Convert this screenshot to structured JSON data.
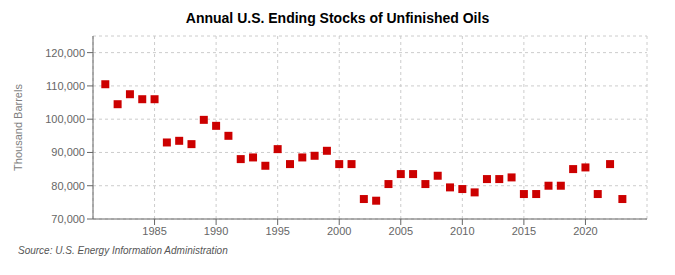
{
  "chart_data": {
    "type": "scatter",
    "title": "Annual U.S. Ending Stocks of Unfinished Oils",
    "ylabel": "Thousand Barrels",
    "annotations": [
      "Source: U.S. Energy Information Administration"
    ],
    "x": [
      1981,
      1982,
      1983,
      1984,
      1985,
      1986,
      1987,
      1988,
      1989,
      1990,
      1991,
      1992,
      1993,
      1994,
      1995,
      1996,
      1997,
      1998,
      1999,
      2000,
      2001,
      2002,
      2003,
      2004,
      2005,
      2006,
      2007,
      2008,
      2009,
      2010,
      2011,
      2012,
      2013,
      2014,
      2015,
      2016,
      2017,
      2018,
      2019,
      2020,
      2021,
      2022,
      2023
    ],
    "values": [
      110500,
      104500,
      107500,
      106000,
      106000,
      93000,
      93500,
      92500,
      99800,
      98000,
      95000,
      88000,
      88500,
      86000,
      91000,
      86500,
      88500,
      89000,
      90500,
      86500,
      86500,
      76000,
      75500,
      80500,
      83500,
      83500,
      80500,
      83000,
      79500,
      79000,
      78000,
      82000,
      82000,
      82500,
      77500,
      77500,
      80000,
      80000,
      85000,
      85500,
      77500,
      86500,
      76000
    ],
    "color": "#cc0000",
    "marker": "square",
    "xlim": [
      1980,
      2025
    ],
    "xticks": [
      1985,
      1990,
      1995,
      2000,
      2005,
      2010,
      2015,
      2020
    ],
    "ylim": [
      70000,
      125000
    ],
    "yticks": [
      {
        "value": 70000,
        "label": "70,000"
      },
      {
        "value": 80000,
        "label": "80,000"
      },
      {
        "value": 90000,
        "label": "90,000"
      },
      {
        "value": 100000,
        "label": "100,000"
      },
      {
        "value": 110000,
        "label": "110,000"
      },
      {
        "value": 120000,
        "label": "120,000"
      }
    ],
    "grid": true
  }
}
